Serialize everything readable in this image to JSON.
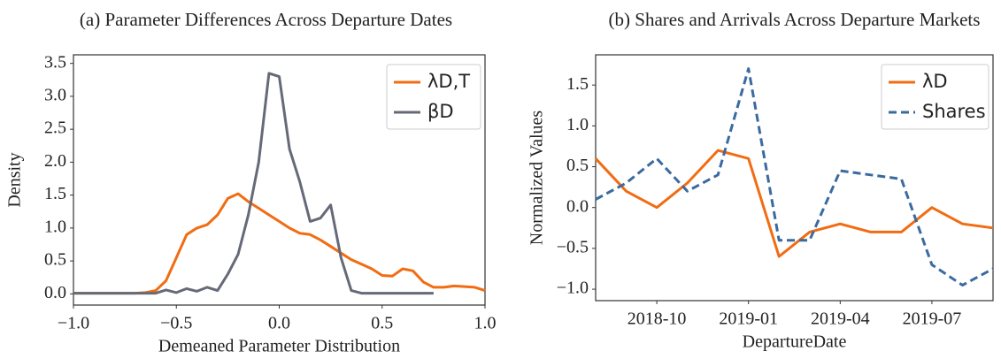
{
  "chart_data": [
    {
      "type": "line",
      "title": "(a) Parameter Differences Across Departure Dates",
      "xlabel": "Demeaned Parameter Distribution",
      "ylabel": "Density",
      "x": [
        -1,
        -0.95,
        -0.9,
        -0.85,
        -0.8,
        -0.75,
        -0.7,
        -0.65,
        -0.6,
        -0.55,
        -0.5,
        -0.45,
        -0.4,
        -0.35,
        -0.3,
        -0.25,
        -0.2,
        -0.15,
        -0.1,
        -0.05,
        0,
        0.05,
        0.1,
        0.15,
        0.2,
        0.25,
        0.3,
        0.35,
        0.4,
        0.45,
        0.5,
        0.55,
        0.6,
        0.65,
        0.7,
        0.75,
        0.8,
        0.85,
        0.9,
        0.95,
        1
      ],
      "series": [
        {
          "name": "λD,T",
          "color": "#f16c12",
          "style": "solid",
          "values": [
            0.01,
            0.01,
            0.01,
            0.01,
            0.01,
            0.01,
            0.01,
            0.02,
            0.05,
            0.2,
            0.55,
            0.9,
            1.0,
            1.05,
            1.2,
            1.45,
            1.52,
            1.4,
            1.3,
            1.2,
            1.1,
            1.0,
            0.92,
            0.9,
            0.82,
            0.72,
            0.62,
            0.52,
            0.45,
            0.38,
            0.28,
            0.27,
            0.38,
            0.35,
            0.18,
            0.1,
            0.1,
            0.12,
            0.11,
            0.1,
            0.05
          ]
        },
        {
          "name": "βD",
          "color": "#666a78",
          "style": "solid",
          "values": [
            0.01,
            0.01,
            0.01,
            0.01,
            0.01,
            0.01,
            0.01,
            0.01,
            0.01,
            0.06,
            0.02,
            0.08,
            0.04,
            0.1,
            0.05,
            0.3,
            0.6,
            1.2,
            2.0,
            3.35,
            3.3,
            2.2,
            1.7,
            1.1,
            1.15,
            1.35,
            0.55,
            0.05,
            0.01,
            0.01,
            0.01,
            0.01,
            0.01,
            0.01,
            0.01,
            0.01,
            null,
            null,
            null,
            null,
            null
          ]
        }
      ],
      "xlim": [
        -1,
        1
      ],
      "ylim": [
        -0.17,
        3.63
      ],
      "xticks": [
        {
          "value": -1,
          "label": "−1.0"
        },
        {
          "value": -0.5,
          "label": "−0.5"
        },
        {
          "value": 0,
          "label": "0.0"
        },
        0.5,
        {
          "value": 1,
          "label": "1.0"
        }
      ],
      "yticks": [
        {
          "value": 0,
          "label": "0.0"
        },
        0.5,
        {
          "value": 1,
          "label": "1.0"
        },
        1.5,
        {
          "value": 2,
          "label": "2.0"
        },
        2.5,
        {
          "value": 3,
          "label": "3.0"
        },
        3.5
      ],
      "grid": false,
      "legend": "upper right"
    },
    {
      "type": "line",
      "title": "(b) Shares and Arrivals Across Departure Markets",
      "xlabel": "DepartureDate",
      "ylabel": "Normalized Values",
      "x": [
        "2018-08",
        "2018-09",
        "2018-10",
        "2018-11",
        "2018-12",
        "2019-01",
        "2019-02",
        "2019-03",
        "2019-04",
        "2019-05",
        "2019-06",
        "2019-07",
        "2019-08",
        "2019-09"
      ],
      "series": [
        {
          "name": "λD",
          "color": "#f16c12",
          "style": "solid",
          "values": [
            0.6,
            0.2,
            0.0,
            0.3,
            0.7,
            0.6,
            -0.6,
            -0.3,
            -0.2,
            -0.3,
            -0.3,
            0.0,
            -0.2,
            -0.25
          ]
        },
        {
          "name": "Shares",
          "color": "#3b6aa0",
          "style": "dashed",
          "values": [
            0.1,
            0.3,
            0.6,
            0.2,
            0.4,
            1.7,
            -0.4,
            -0.4,
            0.45,
            0.4,
            0.35,
            -0.7,
            -0.95,
            -0.75
          ]
        }
      ],
      "xlim": [
        "2018-08",
        "2019-09"
      ],
      "ylim": [
        -1.14,
        1.87
      ],
      "xticks": [
        "2018-10",
        "2019-01",
        "2019-04",
        "2019-07"
      ],
      "yticks": [
        {
          "value": -1,
          "label": "−1.0"
        },
        {
          "value": -0.5,
          "label": "−0.5"
        },
        {
          "value": 0,
          "label": "0.0"
        },
        0.5,
        {
          "value": 1,
          "label": "1.0"
        },
        1.5
      ],
      "grid": false,
      "legend": "upper right"
    }
  ]
}
